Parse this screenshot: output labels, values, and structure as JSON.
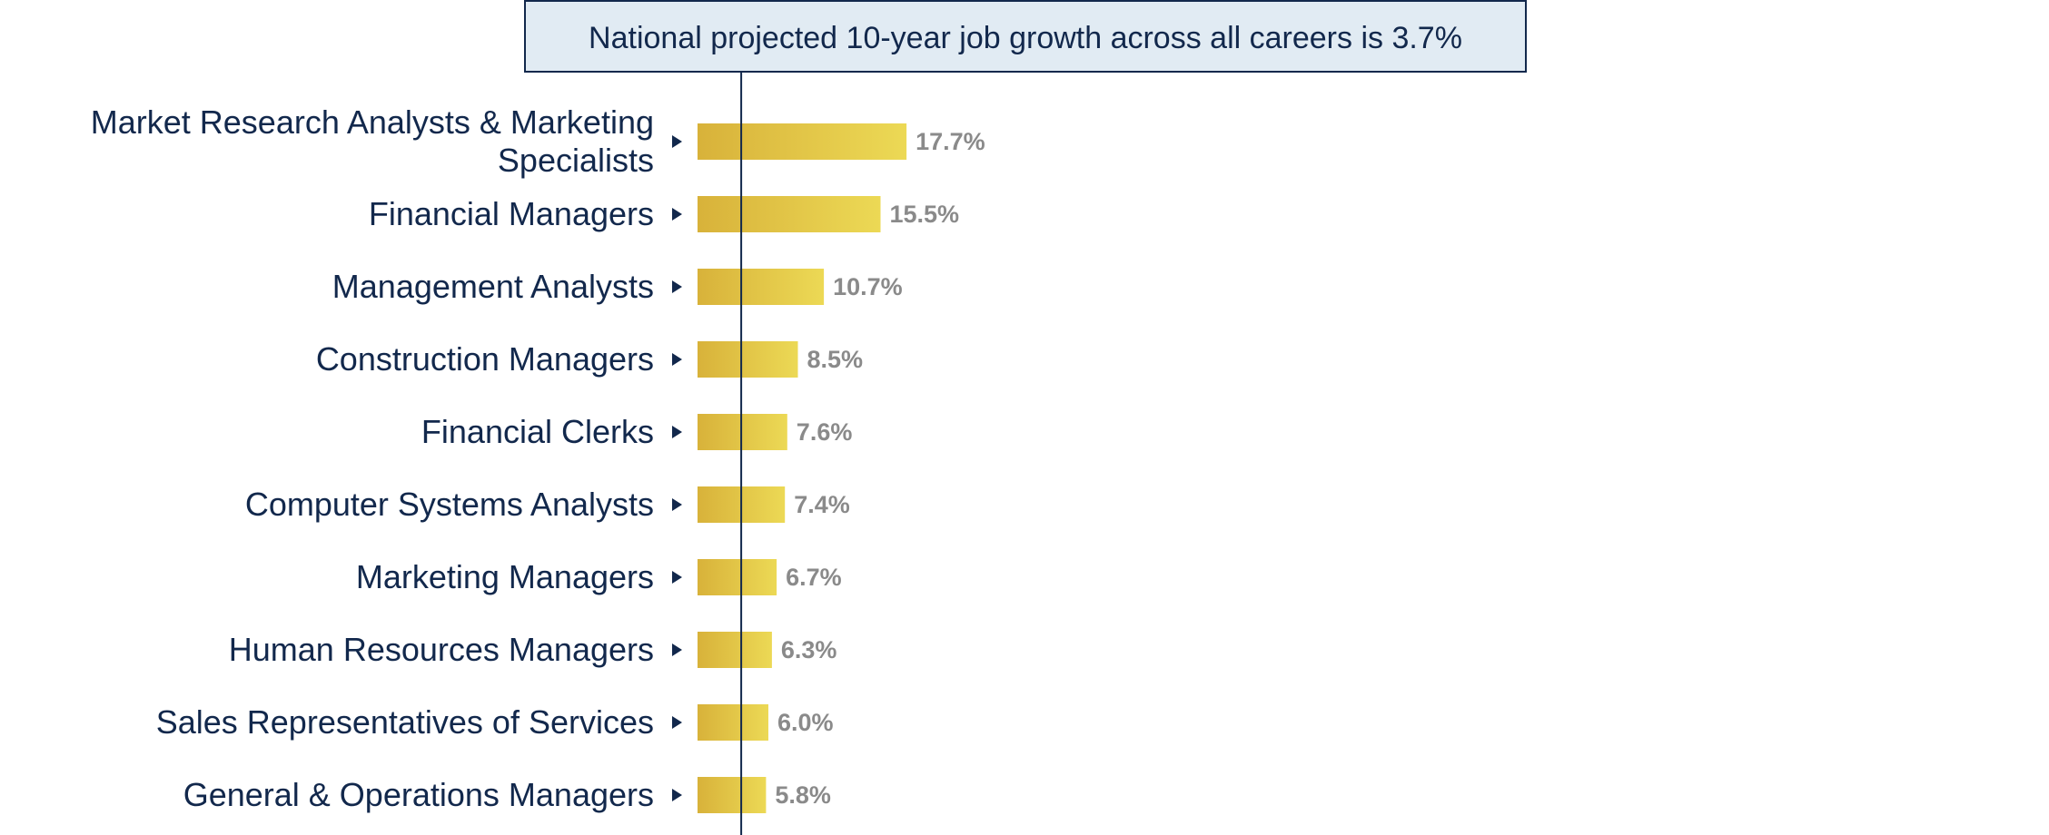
{
  "chart_data": {
    "type": "bar",
    "orientation": "horizontal",
    "title": "",
    "xlabel": "",
    "ylabel": "",
    "categories": [
      "Market Research Analysts & Marketing Specialists",
      "Financial Managers",
      "Management Analysts",
      "Construction Managers",
      "Financial Clerks",
      "Computer Systems Analysts",
      "Marketing Managers",
      "Human Resources Managers",
      "Sales Representatives of Services",
      "General & Operations Managers"
    ],
    "category_lines": [
      [
        "Market Research Analysts & Marketing",
        "Specialists"
      ],
      [
        "Financial Managers"
      ],
      [
        "Management Analysts"
      ],
      [
        "Construction Managers"
      ],
      [
        "Financial Clerks"
      ],
      [
        "Computer Systems Analysts"
      ],
      [
        "Marketing Managers"
      ],
      [
        "Human Resources Managers"
      ],
      [
        "Sales Representatives of Services"
      ],
      [
        "General & Operations Managers"
      ]
    ],
    "values": [
      17.7,
      15.5,
      10.7,
      8.5,
      7.6,
      7.4,
      6.7,
      6.3,
      6.0,
      5.8
    ],
    "value_labels": [
      "17.7%",
      "15.5%",
      "10.7%",
      "8.5%",
      "7.6%",
      "7.4%",
      "6.7%",
      "6.3%",
      "6.0%",
      "5.8%"
    ],
    "reference_line": {
      "value": 3.7,
      "label": "National projected 10-year job growth across all careers is 3.7%"
    },
    "xlim": [
      0,
      100
    ],
    "grid": false,
    "legend": "none",
    "bar_colors": {
      "start": "#d8b23a",
      "end": "#ecd955"
    },
    "colors": {
      "label": "#12284c",
      "value_label": "#8a8a8a",
      "reference_line": "#12284c",
      "reference_box_fill": "#e1ebf3",
      "reference_box_border": "#12284c",
      "marker": "#12284c"
    }
  }
}
